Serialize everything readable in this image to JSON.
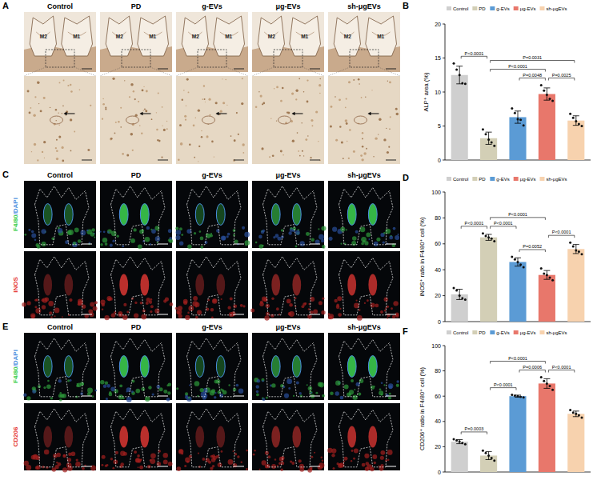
{
  "panel_letters": [
    "A",
    "B",
    "C",
    "D",
    "E",
    "F"
  ],
  "image_panels": [
    {
      "columns": [
        "Control",
        "PD",
        "g-EVs",
        "μg-EVs",
        "sh-μgEVs"
      ],
      "tooth_labels": [
        "M2",
        "M1"
      ]
    },
    {
      "columns": [
        "Control",
        "PD",
        "g-EVs",
        "μg-EVs",
        "sh-μgEVs"
      ],
      "row_labels": [
        [
          {
            "text": "F4/80",
            "color": "#3ccf4e"
          },
          {
            "text": "/DAPI",
            "color": "#4a8fe0"
          }
        ],
        [
          {
            "text": "iNOS",
            "color": "#e53935"
          }
        ]
      ]
    },
    {
      "columns": [
        "Control",
        "PD",
        "g-EVs",
        "μg-EVs",
        "sh-μgEVs"
      ],
      "row_labels": [
        [
          {
            "text": "F4/80",
            "color": "#3ccf4e"
          },
          {
            "text": "/DAPI",
            "color": "#4a8fe0"
          }
        ],
        [
          {
            "text": "CD206",
            "color": "#e53935"
          }
        ]
      ]
    }
  ],
  "chart_data": [
    {
      "type": "bar",
      "ylabel": "ALP⁺ area (%)",
      "categories": [
        "Control",
        "PD",
        "g-EVs",
        "μg-EVs",
        "sh-μgEVs"
      ],
      "values": [
        12.5,
        3.2,
        6.3,
        9.7,
        5.8
      ],
      "errors": [
        1.3,
        0.9,
        0.9,
        0.9,
        0.7
      ],
      "points": [
        [
          14.2,
          13.3,
          12.5,
          11.3,
          11.2
        ],
        [
          4.5,
          3.8,
          3.0,
          2.6,
          2.1
        ],
        [
          7.6,
          6.9,
          6.0,
          5.9,
          5.1
        ],
        [
          11.0,
          10.2,
          9.6,
          9.0,
          8.7
        ],
        [
          6.8,
          6.2,
          5.7,
          5.3,
          5.0
        ]
      ],
      "colors": [
        "#cfcfcf",
        "#d3cfb6",
        "#5b9bd5",
        "#e8776b",
        "#f7d2ae"
      ],
      "ylim": [
        0,
        20
      ],
      "yticks": [
        0,
        5,
        10,
        15,
        20
      ],
      "legend": "top",
      "tick_labels": "y",
      "comparisons": [
        {
          "from": 0,
          "to": 1,
          "label": "P<0.0001"
        },
        {
          "from": 1,
          "to": 4,
          "label": "P=0.0031"
        },
        {
          "from": 1,
          "to": 3,
          "label": "P<0.0001"
        },
        {
          "from": 2,
          "to": 3,
          "label": "P=0.0048"
        },
        {
          "from": 3,
          "to": 4,
          "label": "P=0.0025"
        }
      ]
    },
    {
      "type": "bar",
      "ylabel": "iNOS⁺ ratio in F4/80⁺ cell (%)",
      "categories": [
        "Control",
        "PD",
        "g-EVs",
        "μg-EVs",
        "sh-μgEVs"
      ],
      "values": [
        21,
        65,
        46,
        36,
        56
      ],
      "errors": [
        4,
        2.3,
        3.2,
        3.4,
        3.5
      ],
      "points": [
        [
          26,
          24,
          20,
          18,
          17
        ],
        [
          68,
          66,
          65,
          64,
          62
        ],
        [
          50,
          48,
          46,
          44,
          42
        ],
        [
          41,
          37,
          36,
          34,
          32
        ],
        [
          61,
          58,
          55,
          54,
          52
        ]
      ],
      "colors": [
        "#cfcfcf",
        "#d3cfb6",
        "#5b9bd5",
        "#e8776b",
        "#f7d2ae"
      ],
      "ylim": [
        0,
        100
      ],
      "yticks": [
        0,
        20,
        40,
        60,
        80,
        100
      ],
      "legend": "top",
      "tick_labels": "y",
      "comparisons": [
        {
          "from": 0,
          "to": 1,
          "label": "P<0.0001"
        },
        {
          "from": 1,
          "to": 3,
          "label": "P<0.0001"
        },
        {
          "from": 1,
          "to": 2,
          "label": "P<0.0001"
        },
        {
          "from": 2,
          "to": 3,
          "label": "P=0.0052"
        },
        {
          "from": 3,
          "to": 4,
          "label": "P<0.0001"
        }
      ]
    },
    {
      "type": "bar",
      "ylabel": "CD206⁺ ratio in F4/80⁺ cell (%)",
      "categories": [
        "Control",
        "PD",
        "g-EVs",
        "μg-EVs",
        "sh-μgEVs"
      ],
      "values": [
        24,
        13,
        60,
        70,
        46
      ],
      "errors": [
        1.6,
        3.2,
        0.8,
        3.8,
        2.2
      ],
      "points": [
        [
          26,
          25,
          24,
          23,
          22
        ],
        [
          17,
          15,
          13,
          11,
          9
        ],
        [
          61,
          60.5,
          60,
          59.5,
          59
        ],
        [
          75,
          72,
          70,
          68,
          65
        ],
        [
          49,
          47,
          46,
          45,
          43
        ]
      ],
      "colors": [
        "#cfcfcf",
        "#d3cfb6",
        "#5b9bd5",
        "#e8776b",
        "#f7d2ae"
      ],
      "ylim": [
        0,
        100
      ],
      "yticks": [
        0,
        20,
        40,
        60,
        80,
        100
      ],
      "legend": "top",
      "tick_labels": "y",
      "comparisons": [
        {
          "from": 0,
          "to": 1,
          "label": "P=0.0003"
        },
        {
          "from": 1,
          "to": 3,
          "label": "P<0.0001"
        },
        {
          "from": 1,
          "to": 2,
          "label": "P<0.0001"
        },
        {
          "from": 2,
          "to": 3,
          "label": "P=0.0006"
        },
        {
          "from": 3,
          "to": 4,
          "label": "P<0.0001"
        }
      ]
    }
  ]
}
